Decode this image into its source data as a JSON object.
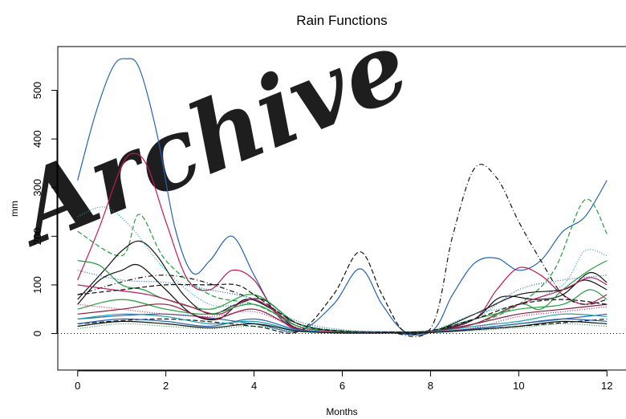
{
  "chart_data": {
    "type": "line",
    "title": "Rain Functions",
    "xlabel": "Months",
    "ylabel": "mm",
    "xlim": [
      -0.45,
      12.45
    ],
    "ylim": [
      -75,
      590
    ],
    "xticks": [
      0,
      2,
      4,
      6,
      8,
      10,
      12
    ],
    "yticks": [
      0,
      100,
      200,
      300,
      400,
      500
    ],
    "grid": false,
    "reference_line": {
      "y": 0,
      "style": "dotted"
    },
    "watermark": "Archive",
    "colors": {
      "blue": "#2463b6",
      "magenta": "#c2185b",
      "black": "#111111",
      "green": "#1e9e3c",
      "teal": "#1aa0a8",
      "darkred": "#8b1a3a"
    },
    "series": [
      {
        "color": "blue",
        "style": "solid",
        "x": [
          0,
          0.4,
          0.8,
          1.1,
          1.4,
          1.8,
          2.2,
          2.6,
          3.0,
          3.5,
          4.0,
          4.5,
          5.0,
          5.5,
          6.0,
          7.0,
          8.0,
          8.5,
          9.0,
          9.5,
          10.0,
          10.5,
          11.0,
          11.5,
          12.0
        ],
        "y": [
          315,
          450,
          548,
          565,
          545,
          410,
          220,
          125,
          150,
          200,
          120,
          40,
          10,
          4,
          3,
          2,
          3,
          80,
          145,
          155,
          130,
          150,
          210,
          240,
          315
        ]
      },
      {
        "color": "magenta",
        "style": "solid",
        "x": [
          0,
          0.5,
          1.0,
          1.3,
          1.6,
          2.0,
          2.5,
          3.0,
          3.5,
          4.0,
          4.5,
          5.0,
          6.0,
          7.0,
          8.0,
          9.0,
          9.5,
          10.0,
          10.5,
          11.0,
          11.5,
          12.0
        ],
        "y": [
          110,
          220,
          345,
          370,
          340,
          230,
          110,
          90,
          130,
          110,
          40,
          8,
          3,
          2,
          3,
          30,
          90,
          135,
          120,
          80,
          60,
          80
        ]
      },
      {
        "color": "black",
        "style": "dashdot",
        "x": [
          0,
          2,
          4,
          5,
          6,
          7,
          8,
          8.5,
          9.0,
          9.5,
          10.0,
          10.5,
          11.0,
          11.5,
          12.0
        ],
        "y": [
          80,
          120,
          70,
          20,
          5,
          3,
          10,
          200,
          340,
          320,
          230,
          150,
          80,
          60,
          70
        ]
      },
      {
        "color": "blue",
        "style": "solid",
        "x": [
          0,
          2,
          4,
          5,
          5.8,
          6.4,
          6.9,
          7.4,
          8,
          10,
          12
        ],
        "y": [
          30,
          40,
          20,
          5,
          60,
          133,
          60,
          5,
          2,
          20,
          40
        ]
      },
      {
        "color": "black",
        "style": "dashed",
        "x": [
          0,
          2,
          4,
          5,
          5.8,
          6.4,
          6.9,
          7.4,
          8,
          10,
          12
        ],
        "y": [
          20,
          30,
          15,
          4,
          80,
          168,
          80,
          4,
          2,
          15,
          30
        ]
      },
      {
        "color": "green",
        "style": "dashed",
        "x": [
          0,
          1.0,
          1.4,
          2.0,
          3.0,
          4.0,
          5.0,
          6.0,
          8.0,
          9.0,
          10.0,
          10.8,
          11.5,
          12.0
        ],
        "y": [
          210,
          160,
          245,
          150,
          80,
          60,
          20,
          5,
          5,
          20,
          60,
          130,
          275,
          205
        ]
      },
      {
        "color": "black",
        "style": "solid",
        "x": [
          0,
          0.6,
          1.0,
          1.4,
          1.8,
          2.4,
          3.0,
          3.6,
          4.2,
          5.0,
          6.0,
          7.0,
          8.0,
          9.0,
          10.0,
          11.0,
          11.5,
          12.0
        ],
        "y": [
          70,
          130,
          170,
          190,
          160,
          80,
          40,
          60,
          70,
          20,
          4,
          2,
          4,
          40,
          80,
          90,
          110,
          90
        ]
      },
      {
        "color": "black",
        "style": "solid",
        "x": [
          0,
          0.5,
          1.0,
          1.4,
          2.0,
          2.6,
          3.2,
          3.8,
          4.4,
          5.0,
          6.0,
          7.0,
          8.0,
          9.0,
          9.6,
          10.4,
          11.0,
          11.6,
          12.0
        ],
        "y": [
          60,
          110,
          130,
          140,
          90,
          40,
          30,
          70,
          50,
          10,
          3,
          2,
          4,
          30,
          75,
          70,
          80,
          125,
          105
        ]
      },
      {
        "color": "green",
        "style": "solid",
        "x": [
          0,
          0.5,
          1.0,
          1.5,
          2.0,
          3.0,
          4.0,
          5.0,
          6.0,
          7.0,
          8.0,
          9.0,
          10.0,
          10.5,
          11.0,
          11.6,
          12.0
        ],
        "y": [
          150,
          140,
          100,
          90,
          70,
          50,
          80,
          20,
          5,
          3,
          5,
          20,
          60,
          50,
          90,
          130,
          150
        ]
      },
      {
        "color": "teal",
        "style": "dotted",
        "x": [
          0,
          0.6,
          1.2,
          2.0,
          3.0,
          4.0,
          5.0,
          6.0,
          7.0,
          8.0,
          9.0,
          10.0,
          11.0,
          11.5,
          12.0
        ],
        "y": [
          240,
          260,
          220,
          130,
          60,
          60,
          20,
          6,
          4,
          6,
          40,
          60,
          100,
          170,
          160
        ]
      },
      {
        "color": "magenta",
        "style": "solid",
        "x": [
          0,
          0.8,
          1.6,
          2.4,
          3.2,
          4.0,
          5.0,
          6.0,
          7.0,
          8.0,
          9.0,
          10.0,
          11.0,
          11.6,
          12.0
        ],
        "y": [
          100,
          90,
          80,
          60,
          40,
          70,
          15,
          5,
          3,
          5,
          20,
          60,
          90,
          115,
          100
        ]
      },
      {
        "color": "blue",
        "style": "dotted",
        "x": [
          0,
          1.0,
          2.0,
          3.0,
          4.0,
          5.0,
          6.0,
          7.0,
          8.0,
          9.0,
          10.0,
          11.0,
          12.0
        ],
        "y": [
          130,
          110,
          105,
          90,
          70,
          25,
          8,
          4,
          6,
          30,
          90,
          110,
          120
        ]
      },
      {
        "color": "green",
        "style": "solid",
        "x": [
          0,
          1.0,
          2.0,
          3.0,
          4.0,
          5.0,
          6.0,
          7.0,
          8.0,
          9.0,
          10.0,
          11.0,
          11.6,
          12.0
        ],
        "y": [
          50,
          70,
          50,
          40,
          60,
          15,
          5,
          3,
          5,
          30,
          50,
          60,
          90,
          70
        ]
      },
      {
        "color": "darkred",
        "style": "solid",
        "x": [
          0,
          1.0,
          2.0,
          3.0,
          4.0,
          5.0,
          6.0,
          7.0,
          8.0,
          9.0,
          10.0,
          11.0,
          12.0
        ],
        "y": [
          40,
          50,
          60,
          30,
          50,
          10,
          3,
          2,
          4,
          20,
          40,
          50,
          60
        ]
      },
      {
        "color": "black",
        "style": "dashed",
        "x": [
          0,
          1.0,
          2.0,
          3.0,
          3.6,
          4.0,
          5.0,
          6.0,
          7.0,
          8.0,
          9.0,
          10.0,
          11.0,
          12.0
        ],
        "y": [
          80,
          90,
          100,
          100,
          100,
          80,
          20,
          5,
          3,
          6,
          30,
          60,
          70,
          60
        ]
      },
      {
        "color": "blue",
        "style": "solid",
        "x": [
          0,
          1.0,
          2.0,
          3.0,
          4.0,
          5.0,
          6.0,
          7.0,
          8.0,
          9.0,
          10.0,
          11.0,
          12.0
        ],
        "y": [
          20,
          30,
          25,
          15,
          30,
          8,
          2,
          1,
          2,
          10,
          20,
          30,
          25
        ]
      },
      {
        "color": "teal",
        "style": "solid",
        "x": [
          0,
          1.0,
          2.0,
          3.0,
          4.0,
          5.0,
          6.0,
          7.0,
          8.0,
          9.0,
          10.0,
          11.0,
          12.0
        ],
        "y": [
          30,
          40,
          35,
          20,
          25,
          6,
          2,
          1,
          3,
          15,
          25,
          40,
          35
        ]
      },
      {
        "color": "green",
        "style": "dotted",
        "x": [
          0,
          1.0,
          2.0,
          3.0,
          4.0,
          5.0,
          6.0,
          7.0,
          8.0,
          9.0,
          10.0,
          11.0,
          12.0
        ],
        "y": [
          10,
          20,
          15,
          10,
          15,
          4,
          1,
          1,
          2,
          6,
          12,
          20,
          15
        ]
      },
      {
        "color": "magenta",
        "style": "dotted",
        "x": [
          0,
          1.0,
          2.0,
          3.0,
          4.0,
          5.0,
          6.0,
          7.0,
          8.0,
          9.0,
          10.0,
          11.0,
          12.0
        ],
        "y": [
          60,
          50,
          40,
          35,
          45,
          12,
          3,
          2,
          3,
          12,
          35,
          45,
          55
        ]
      },
      {
        "color": "black",
        "style": "solid",
        "x": [
          0,
          1.0,
          2.0,
          3.0,
          4.0,
          5.0,
          6.0,
          7.0,
          8.0,
          9.0,
          10.0,
          11.0,
          12.0
        ],
        "y": [
          15,
          25,
          20,
          12,
          20,
          5,
          1,
          1,
          2,
          8,
          15,
          25,
          20
        ]
      }
    ]
  }
}
